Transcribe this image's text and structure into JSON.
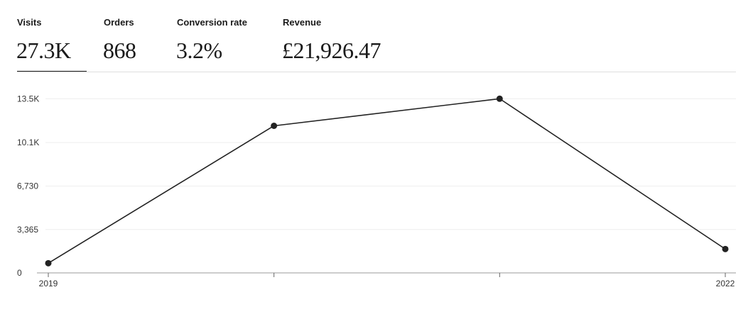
{
  "metrics": [
    {
      "id": "visits",
      "label": "Visits",
      "value": "27.3K",
      "active": true
    },
    {
      "id": "orders",
      "label": "Orders",
      "value": "868",
      "active": false
    },
    {
      "id": "conversion",
      "label": "Conversion rate",
      "value": "3.2%",
      "active": false
    },
    {
      "id": "revenue",
      "label": "Revenue",
      "value": "£21,926.47",
      "active": false
    }
  ],
  "chart_data": {
    "type": "line",
    "x": [
      "2019",
      "2020",
      "2021",
      "2022"
    ],
    "x_tick_labels": [
      "2019",
      "",
      "",
      "2022"
    ],
    "values": [
      750,
      11400,
      13500,
      1850
    ],
    "ylim": [
      0,
      13460
    ],
    "y_ticks": [
      0,
      3365,
      6730,
      10100,
      13500
    ],
    "y_tick_labels": [
      "0",
      "3,365",
      "6,730",
      "10.1K",
      "13.5K"
    ],
    "grid": true,
    "line_color": "#222222",
    "grid_color": "#eeeeee",
    "axis_color": "#999999"
  }
}
